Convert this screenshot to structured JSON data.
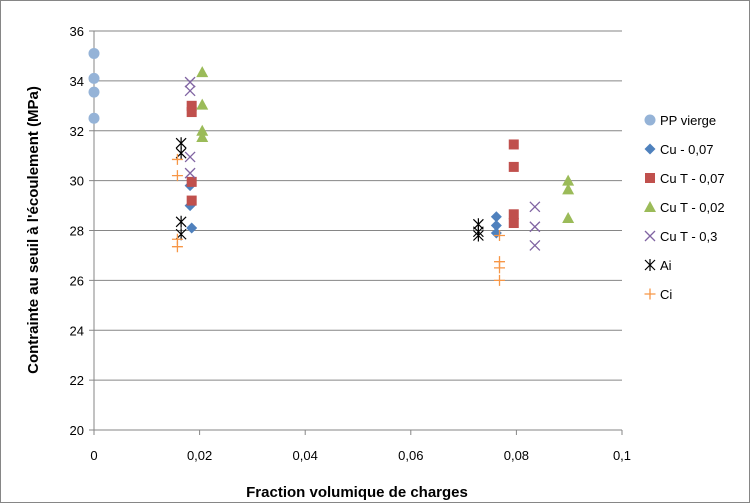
{
  "chart_data": {
    "type": "scatter",
    "title": "",
    "xlabel": "Fraction volumique de charges",
    "ylabel": "Contrainte au seuil à l'écoulement (MPa)",
    "xlim": [
      0,
      0.1
    ],
    "ylim": [
      20,
      36
    ],
    "x_ticks": [
      0,
      0.02,
      0.04,
      0.06,
      0.08,
      0.1
    ],
    "x_tick_labels": [
      "0",
      "0,02",
      "0,04",
      "0,06",
      "0,08",
      "0,1"
    ],
    "y_ticks": [
      20,
      22,
      24,
      26,
      28,
      30,
      32,
      34,
      36
    ],
    "y_tick_labels": [
      "20",
      "22",
      "24",
      "26",
      "28",
      "30",
      "32",
      "34",
      "36"
    ],
    "grid": "horizontal",
    "legend_position": "right",
    "series": [
      {
        "name": "PP vierge",
        "marker": "circle",
        "color": "#95B3D7",
        "points": [
          [
            0,
            35.1
          ],
          [
            0,
            34.1
          ],
          [
            0,
            33.55
          ],
          [
            0,
            32.5
          ]
        ]
      },
      {
        "name": "Cu - 0,07",
        "marker": "diamond",
        "color": "#4F81BD",
        "points": [
          [
            0.0182,
            29.8
          ],
          [
            0.0182,
            29.0
          ],
          [
            0.0185,
            28.1
          ],
          [
            0.0762,
            28.55
          ],
          [
            0.0762,
            28.2
          ],
          [
            0.0762,
            27.9
          ]
        ]
      },
      {
        "name": "Cu T - 0,07",
        "marker": "square",
        "color": "#C0504D",
        "points": [
          [
            0.0185,
            33.0
          ],
          [
            0.0185,
            32.75
          ],
          [
            0.0185,
            29.95
          ],
          [
            0.0185,
            29.2
          ],
          [
            0.0795,
            31.45
          ],
          [
            0.0795,
            30.55
          ],
          [
            0.0795,
            28.65
          ],
          [
            0.0795,
            28.3
          ]
        ]
      },
      {
        "name": "Cu T - 0,02",
        "marker": "triangle",
        "color": "#9BBB59",
        "points": [
          [
            0.0205,
            34.35
          ],
          [
            0.0205,
            33.05
          ],
          [
            0.0205,
            32.0
          ],
          [
            0.0205,
            31.75
          ],
          [
            0.0898,
            30.0
          ],
          [
            0.0898,
            29.65
          ],
          [
            0.0898,
            28.5
          ]
        ]
      },
      {
        "name": "Cu T - 0,3",
        "marker": "x",
        "color": "#8064A2",
        "points": [
          [
            0.0182,
            33.95
          ],
          [
            0.0182,
            33.6
          ],
          [
            0.0182,
            30.95
          ],
          [
            0.0182,
            30.3
          ],
          [
            0.0835,
            28.95
          ],
          [
            0.0835,
            28.15
          ],
          [
            0.0835,
            27.4
          ]
        ]
      },
      {
        "name": "Ai",
        "marker": "star",
        "color": "#000000",
        "points": [
          [
            0.0165,
            31.5
          ],
          [
            0.0165,
            31.1
          ],
          [
            0.0165,
            28.35
          ],
          [
            0.0165,
            27.85
          ],
          [
            0.0728,
            28.25
          ],
          [
            0.0728,
            27.95
          ],
          [
            0.0728,
            27.8
          ]
        ]
      },
      {
        "name": "Ci",
        "marker": "plus",
        "color": "#F79646",
        "points": [
          [
            0.0158,
            30.85
          ],
          [
            0.0158,
            30.2
          ],
          [
            0.0158,
            27.65
          ],
          [
            0.0158,
            27.35
          ],
          [
            0.0768,
            27.8
          ],
          [
            0.0768,
            26.75
          ],
          [
            0.0768,
            26.5
          ],
          [
            0.0768,
            26.0
          ]
        ]
      }
    ]
  }
}
